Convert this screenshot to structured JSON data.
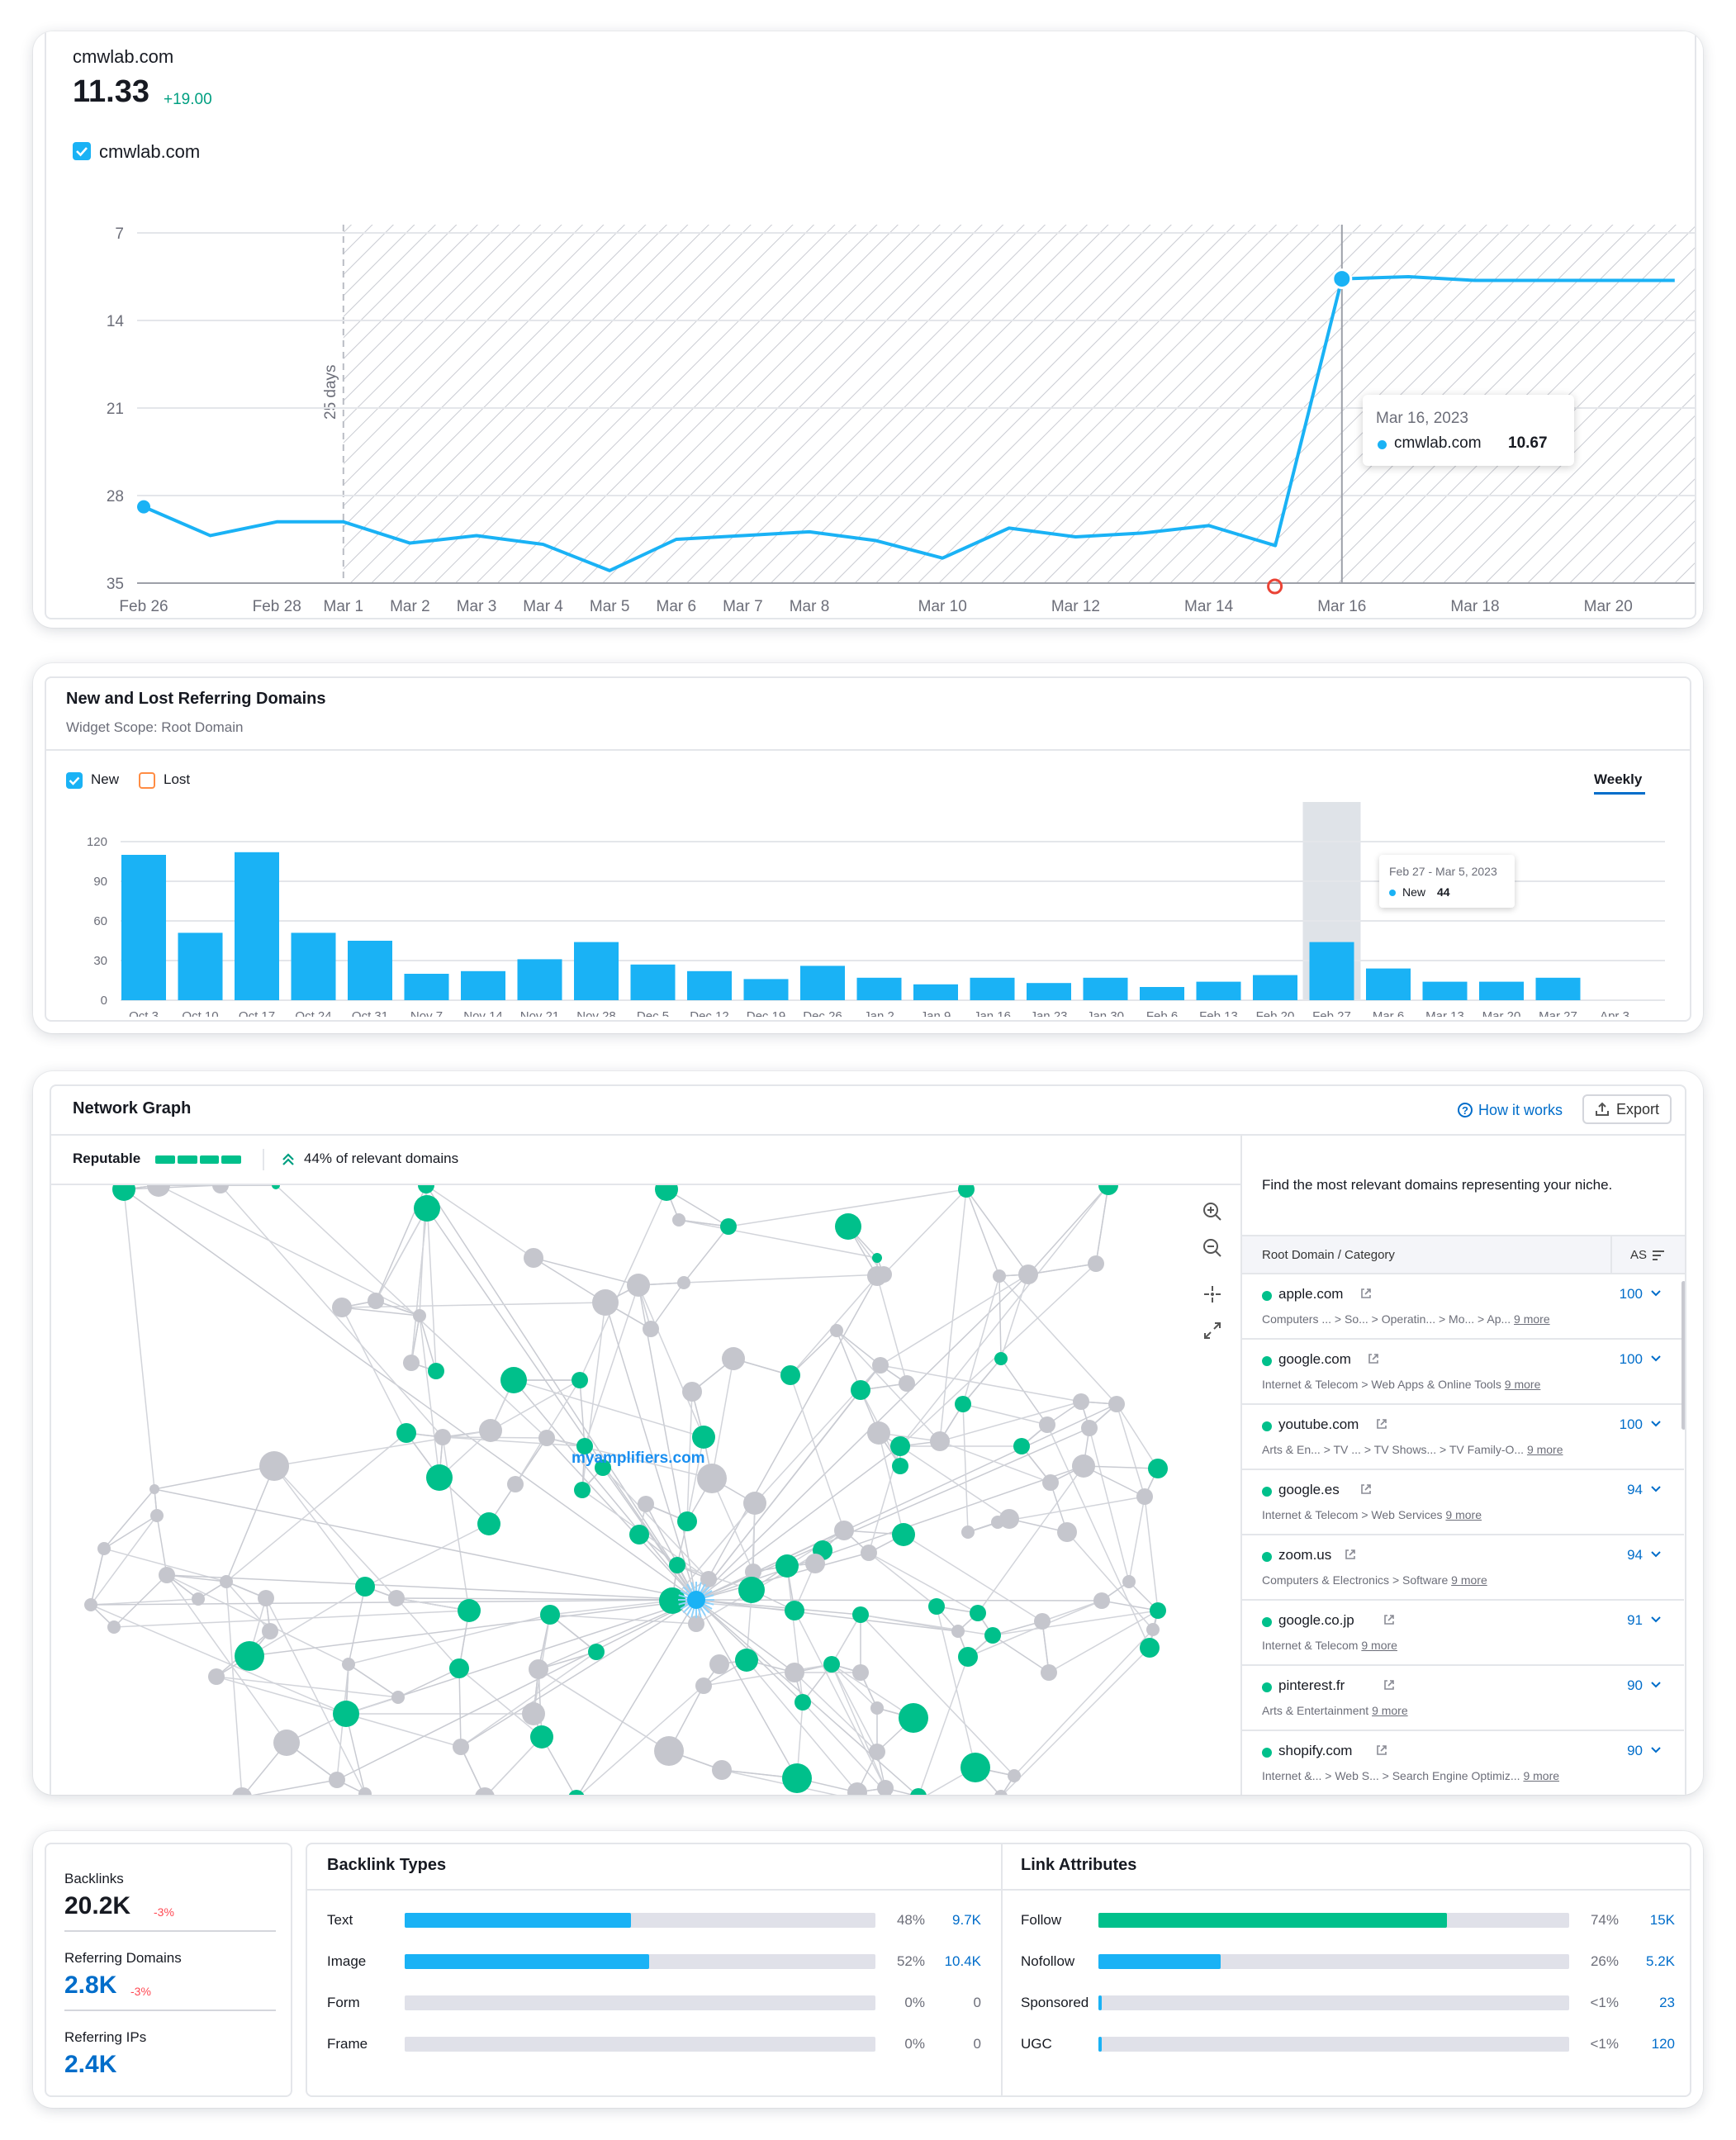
{
  "colors": {
    "accent": "#1ab2f5",
    "green": "#00c08b",
    "gray": "#c5c6cd",
    "positive": "#009f81",
    "negative": "#ff4953",
    "link": "#006dca"
  },
  "position_card": {
    "domain": "cmwlab.com",
    "value": "11.33",
    "delta": "+19.00",
    "legend_label": "cmwlab.com",
    "period_label": "25 days",
    "tooltip": {
      "date": "Mar 16, 2023",
      "series": "cmwlab.com",
      "value": "10.67"
    },
    "y_ticks": [
      "7",
      "14",
      "21",
      "28",
      "35"
    ],
    "x_ticks": [
      "Feb 26",
      "Feb 28",
      "Mar 1",
      "Mar 2",
      "Mar 3",
      "Mar 4",
      "Mar 5",
      "Mar 6",
      "Mar 7",
      "Mar 8",
      "Mar 10",
      "Mar 12",
      "Mar 14",
      "Mar 16",
      "Mar 18",
      "Mar 20"
    ]
  },
  "referring_card": {
    "title": "New and Lost Referring Domains",
    "subtitle": "Widget Scope: Root Domain",
    "legend_new": "New",
    "legend_lost": "Lost",
    "period_tab": "Weekly",
    "tooltip": {
      "range": "Feb 27 - Mar 5, 2023",
      "label": "New",
      "value": "44"
    }
  },
  "network_card": {
    "title": "Network Graph",
    "how_it_works": "How it works",
    "export": "Export",
    "reputable_label": "Reputable",
    "relevant_text": "44% of relevant domains",
    "center_node": "myamplifiers.com",
    "panel_intro": "Find the most relevant domains representing your niche.",
    "table_header": "Root Domain / Category",
    "table_sort": "AS",
    "domains": [
      {
        "name": "apple.com",
        "category": "Computers ...  > So...  > Operatin...  > Mo...  > Ap...",
        "more": "9 more",
        "score": "100"
      },
      {
        "name": "google.com",
        "category": "Internet & Telecom > Web Apps & Online Tools",
        "more": "9 more",
        "score": "100"
      },
      {
        "name": "youtube.com",
        "category": "Arts & En...  > TV ...  > TV Shows...  > TV Family-O...",
        "more": "9 more",
        "score": "100"
      },
      {
        "name": "google.es",
        "category": "Internet & Telecom > Web Services",
        "more": "9 more",
        "score": "94"
      },
      {
        "name": "zoom.us",
        "category": "Computers & Electronics > Software",
        "more": "9 more",
        "score": "94"
      },
      {
        "name": "google.co.jp",
        "category": "Internet & Telecom",
        "more": "9 more",
        "score": "91"
      },
      {
        "name": "pinterest.fr",
        "category": "Arts & Entertainment",
        "more": "9 more",
        "score": "90"
      },
      {
        "name": "shopify.com",
        "category": "Internet &...  > Web S...  > Search Engine Optimiz...",
        "more": "9 more",
        "score": "90"
      }
    ]
  },
  "summary_card": {
    "backlinks": {
      "label": "Backlinks",
      "value": "20.2K",
      "delta": "-3%"
    },
    "referring_domains": {
      "label": "Referring Domains",
      "value": "2.8K",
      "delta": "-3%"
    },
    "referring_ips": {
      "label": "Referring IPs",
      "value": "2.4K"
    },
    "backlink_types_title": "Backlink Types",
    "backlink_types": [
      {
        "label": "Text",
        "percent": "48%",
        "count": "9.7K",
        "share": 0.48
      },
      {
        "label": "Image",
        "percent": "52%",
        "count": "10.4K",
        "share": 0.52
      },
      {
        "label": "Form",
        "percent": "0%",
        "count": "0",
        "share": 0
      },
      {
        "label": "Frame",
        "percent": "0%",
        "count": "0",
        "share": 0
      }
    ],
    "link_attributes_title": "Link Attributes",
    "link_attributes": [
      {
        "label": "Follow",
        "percent": "74%",
        "count": "15K",
        "share": 0.74,
        "color": "#00c08b"
      },
      {
        "label": "Nofollow",
        "percent": "26%",
        "count": "5.2K",
        "share": 0.26,
        "color": "#1ab2f5"
      },
      {
        "label": "Sponsored",
        "percent": "<1%",
        "count": "23",
        "share": 0.004,
        "color": "#1ab2f5"
      },
      {
        "label": "UGC",
        "percent": "<1%",
        "count": "120",
        "share": 0.006,
        "color": "#1ab2f5"
      }
    ]
  },
  "chart_data": [
    {
      "type": "line",
      "title": "",
      "y_inverted": true,
      "ylim": [
        7,
        35
      ],
      "y_ticks": [
        7,
        14,
        21,
        28,
        35
      ],
      "x": [
        "Feb 26",
        "Feb 27",
        "Feb 28",
        "Mar 1",
        "Mar 2",
        "Mar 3",
        "Mar 4",
        "Mar 5",
        "Mar 6",
        "Mar 7",
        "Mar 8",
        "Mar 9",
        "Mar 10",
        "Mar 11",
        "Mar 12",
        "Mar 13",
        "Mar 14",
        "Mar 15",
        "Mar 16",
        "Mar 17",
        "Mar 18",
        "Mar 19",
        "Mar 20",
        "Mar 21"
      ],
      "series": [
        {
          "name": "cmwlab.com",
          "values": [
            28.9,
            31.2,
            30.1,
            30.1,
            31.8,
            31.2,
            31.9,
            34.0,
            31.5,
            31.2,
            30.9,
            31.6,
            33.0,
            30.6,
            31.3,
            31.0,
            30.4,
            32.0,
            10.67,
            10.5,
            10.8,
            10.8,
            10.8,
            10.8
          ]
        }
      ],
      "hatched_range": [
        "Mar 1",
        "Mar 21"
      ]
    },
    {
      "type": "bar",
      "title": "New and Lost Referring Domains",
      "ylim": [
        0,
        120
      ],
      "y_ticks": [
        0,
        30,
        60,
        90,
        120
      ],
      "categories": [
        "Oct 3",
        "Oct 10",
        "Oct 17",
        "Oct 24",
        "Oct 31",
        "Nov 7",
        "Nov 14",
        "Nov 21",
        "Nov 28",
        "Dec 5",
        "Dec 12",
        "Dec 19",
        "Dec 26",
        "Jan 2",
        "Jan 9",
        "Jan 16",
        "Jan 23",
        "Jan 30",
        "Feb 6",
        "Feb 13",
        "Feb 20",
        "Feb 27",
        "Mar 6",
        "Mar 13",
        "Mar 20",
        "Mar 27",
        "Apr 3"
      ],
      "series": [
        {
          "name": "New",
          "values": [
            110,
            51,
            112,
            51,
            45,
            20,
            22,
            31,
            44,
            27,
            22,
            16,
            26,
            17,
            12,
            17,
            13,
            17,
            10,
            14,
            19,
            44,
            24,
            14,
            14,
            17,
            0
          ]
        }
      ]
    }
  ]
}
